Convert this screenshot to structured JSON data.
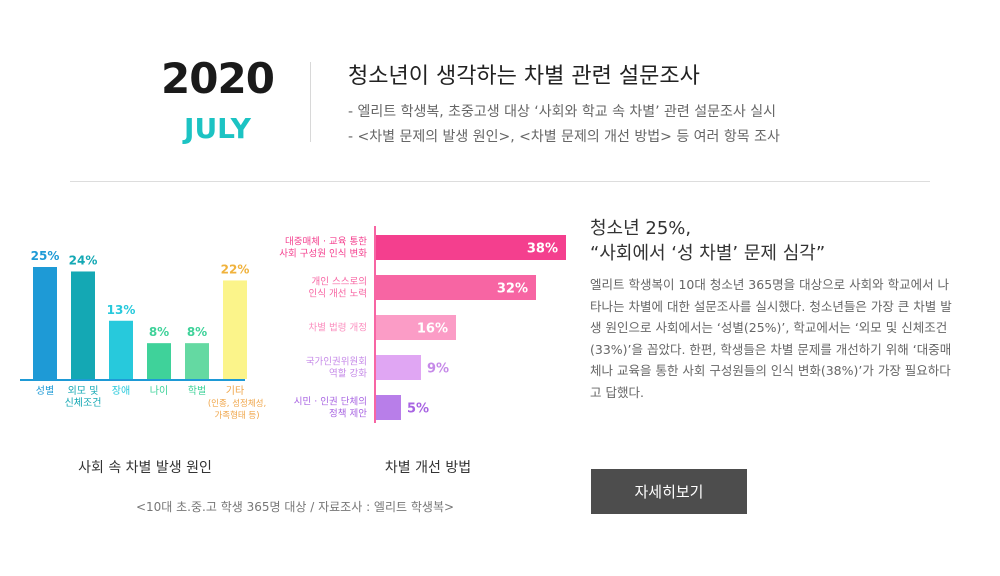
{
  "header": {
    "year": "2020",
    "month": "JULY",
    "title": "청소년이 생각하는 차별 관련 설문조사",
    "bullets": [
      "-  엘리트 학생복, 초중고생 대상 ‘사회와 학교 속 차별’ 관련 설문조사 실시",
      "-  <차별 문제의 발생 원인>, <차별 문제의 개선 방법> 등 여러 항목 조사"
    ]
  },
  "chart_data": [
    {
      "type": "bar",
      "title": "사회 속 차별 발생 원인",
      "categories": [
        [
          "성별"
        ],
        [
          "외모 및",
          "신체조건"
        ],
        [
          "장애"
        ],
        [
          "나이"
        ],
        [
          "학벌"
        ],
        [
          "기타"
        ]
      ],
      "category_notes": [
        "",
        "",
        "",
        "",
        "",
        "(인종, 성정체성,|가족형태 등)"
      ],
      "values": [
        25,
        24,
        13,
        8,
        8,
        22
      ],
      "value_labels": [
        "25%",
        "24%",
        "13%",
        "8%",
        "8%",
        "22%"
      ],
      "colors": [
        "#1e9ad6",
        "#14a8b4",
        "#27c9dc",
        "#3fd29a",
        "#64d9a2",
        "#fbf48a"
      ],
      "label_colors": [
        "#1e9ad6",
        "#14a8b4",
        "#27c9dc",
        "#3fd29a",
        "#3fd29a",
        "#f0b23c"
      ],
      "cat_label_colors": [
        "#1e9ad6",
        "#14a8b4",
        "#27c9dc",
        "#3fd29a",
        "#3fd29a",
        "#f0a64a"
      ],
      "ylim": [
        0,
        25
      ]
    },
    {
      "type": "bar",
      "orientation": "horizontal",
      "title": "차별 개선 방법",
      "categories": [
        [
          "대중매체 · 교육 통한",
          "사회 구성원 인식 변화"
        ],
        [
          "개인 스스로의",
          "인식 개선 노력"
        ],
        [
          "차별 법령 개정"
        ],
        [
          "국가인권위원회",
          "역할 강화"
        ],
        [
          "시민 · 인권 단체의",
          "정책 제안"
        ]
      ],
      "values": [
        38,
        32,
        16,
        9,
        5
      ],
      "value_labels": [
        "38%",
        "32%",
        "16%",
        "9%",
        "5%"
      ],
      "colors": [
        "#f43f8e",
        "#f765a3",
        "#fb9cc6",
        "#e0a6f3",
        "#b87ee9"
      ],
      "label_colors": [
        "#f43f8e",
        "#f765a3",
        "#fb8fbf",
        "#c68ae8",
        "#a864e2"
      ],
      "xlim": [
        0,
        38
      ]
    }
  ],
  "source": "<10대 초.중.고 학생 365명 대상 / 자료조사 : 엘리트 학생복>",
  "article": {
    "headline": [
      "청소년 25%,",
      "“사회에서 ‘성 차별’ 문제 심각”"
    ],
    "body": "엘리트 학생복이 10대 청소년 365명을 대상으로 사회와 학교에서 나타나는 차별에 대한 설문조사를 실시했다. 청소년들은 가장 큰 차별 발생 원인으로 사회에서는 ‘성별(25%)’, 학교에서는 ‘외모 및 신체조건(33%)’을 꼽았다. 한편, 학생들은 차별 문제를 개선하기 위해 ‘대중매체나 교육을 통한 사회 구성원들의 인식 변화(38%)’가 가장 필요하다고 답했다.",
    "button": "자세히보기"
  }
}
